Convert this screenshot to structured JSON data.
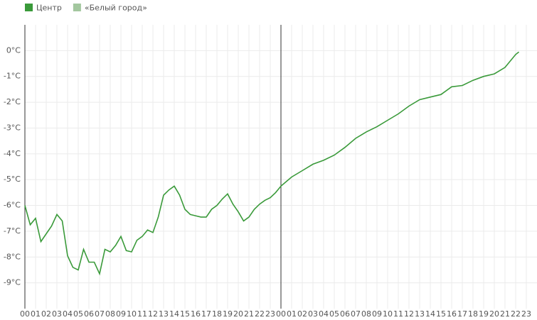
{
  "chart_data": {
    "type": "line",
    "legend": "top-left",
    "grid": true,
    "x": [
      0,
      0.5,
      1,
      1.5,
      2,
      2.5,
      3,
      3.5,
      4,
      4.5,
      5,
      5.5,
      6,
      6.5,
      7,
      7.5,
      8,
      8.5,
      9,
      9.5,
      10,
      10.5,
      11,
      11.5,
      12,
      12.5,
      13,
      13.5,
      14,
      14.5,
      15,
      15.5,
      16,
      16.5,
      17,
      17.5,
      18,
      18.5,
      19,
      19.5,
      20,
      20.5,
      21,
      21.5,
      22,
      22.5,
      23,
      23.5,
      24,
      25,
      26,
      27,
      28,
      29,
      30,
      31,
      32,
      33,
      34,
      35,
      36,
      37,
      38,
      39,
      40,
      41,
      42,
      43,
      44,
      45,
      46,
      46.3
    ],
    "series": [
      {
        "name": "Центр",
        "color": "#3a9a3a",
        "values": [
          -6.0,
          -6.75,
          -6.5,
          -7.4,
          -7.1,
          -6.8,
          -6.35,
          -6.6,
          -7.95,
          -8.4,
          -8.5,
          -7.7,
          -8.2,
          -8.2,
          -8.65,
          -7.7,
          -7.8,
          -7.55,
          -7.2,
          -7.75,
          -7.8,
          -7.35,
          -7.2,
          -6.95,
          -7.05,
          -6.45,
          -5.6,
          -5.4,
          -5.25,
          -5.6,
          -6.15,
          -6.35,
          -6.4,
          -6.45,
          -6.45,
          -6.15,
          -6.0,
          -5.75,
          -5.55,
          -5.95,
          -6.25,
          -6.6,
          -6.45,
          -6.15,
          -5.95,
          -5.8,
          -5.7,
          -5.5,
          -5.25,
          -4.9,
          -4.65,
          -4.4,
          -4.25,
          -4.05,
          -3.75,
          -3.4,
          -3.15,
          -2.95,
          -2.7,
          -2.45,
          -2.15,
          -1.9,
          -1.8,
          -1.7,
          -1.4,
          -1.35,
          -1.15,
          -1.0,
          -0.9,
          -0.65,
          -0.15,
          -0.05
        ]
      },
      {
        "name": "«Белый город»",
        "color": "#a3c79f",
        "values": [
          null,
          null,
          null,
          null,
          null,
          null,
          null,
          null,
          null,
          null,
          null,
          null,
          null,
          null,
          null,
          null,
          null,
          null,
          null,
          null,
          null,
          null,
          null,
          null,
          null,
          null,
          null,
          null,
          null,
          null,
          null,
          null,
          null,
          null,
          null,
          null,
          null,
          null,
          null,
          null,
          null,
          null,
          null,
          null,
          null,
          null,
          null,
          null,
          null,
          null,
          null,
          null,
          null,
          null,
          null,
          null,
          null,
          null,
          null,
          null,
          null,
          null,
          null,
          null,
          null,
          null,
          null,
          null,
          null,
          null,
          null,
          null
        ]
      }
    ],
    "xlim": [
      0,
      48
    ],
    "xticks": [
      {
        "value": 0,
        "label": "00"
      },
      {
        "value": 1,
        "label": "01"
      },
      {
        "value": 2,
        "label": "02"
      },
      {
        "value": 3,
        "label": "03"
      },
      {
        "value": 4,
        "label": "04"
      },
      {
        "value": 5,
        "label": "05"
      },
      {
        "value": 6,
        "label": "06"
      },
      {
        "value": 7,
        "label": "07"
      },
      {
        "value": 8,
        "label": "08"
      },
      {
        "value": 9,
        "label": "09"
      },
      {
        "value": 10,
        "label": "10"
      },
      {
        "value": 11,
        "label": "11"
      },
      {
        "value": 12,
        "label": "12"
      },
      {
        "value": 13,
        "label": "13"
      },
      {
        "value": 14,
        "label": "14"
      },
      {
        "value": 15,
        "label": "15"
      },
      {
        "value": 16,
        "label": "16"
      },
      {
        "value": 17,
        "label": "17"
      },
      {
        "value": 18,
        "label": "18"
      },
      {
        "value": 19,
        "label": "19"
      },
      {
        "value": 20,
        "label": "20"
      },
      {
        "value": 21,
        "label": "21"
      },
      {
        "value": 22,
        "label": "22"
      },
      {
        "value": 23,
        "label": "23"
      },
      {
        "value": 24,
        "label": "00"
      },
      {
        "value": 25,
        "label": "01"
      },
      {
        "value": 26,
        "label": "02"
      },
      {
        "value": 27,
        "label": "03"
      },
      {
        "value": 28,
        "label": "04"
      },
      {
        "value": 29,
        "label": "05"
      },
      {
        "value": 30,
        "label": "06"
      },
      {
        "value": 31,
        "label": "07"
      },
      {
        "value": 32,
        "label": "08"
      },
      {
        "value": 33,
        "label": "09"
      },
      {
        "value": 34,
        "label": "10"
      },
      {
        "value": 35,
        "label": "11"
      },
      {
        "value": 36,
        "label": "12"
      },
      {
        "value": 37,
        "label": "13"
      },
      {
        "value": 38,
        "label": "14"
      },
      {
        "value": 39,
        "label": "15"
      },
      {
        "value": 40,
        "label": "16"
      },
      {
        "value": 41,
        "label": "17"
      },
      {
        "value": 42,
        "label": "18"
      },
      {
        "value": 43,
        "label": "19"
      },
      {
        "value": 44,
        "label": "20"
      },
      {
        "value": 45,
        "label": "21"
      },
      {
        "value": 46,
        "label": "22"
      },
      {
        "value": 47,
        "label": "23"
      }
    ],
    "ylim": [
      -10,
      1
    ],
    "yticks": [
      {
        "value": 0,
        "label": "0°C"
      },
      {
        "value": -1,
        "label": "-1°C"
      },
      {
        "value": -2,
        "label": "-2°C"
      },
      {
        "value": -3,
        "label": "-3°C"
      },
      {
        "value": -4,
        "label": "-4°C"
      },
      {
        "value": -5,
        "label": "-5°C"
      },
      {
        "value": -6,
        "label": "-6°C"
      },
      {
        "value": -7,
        "label": "-7°C"
      },
      {
        "value": -8,
        "label": "-8°C"
      },
      {
        "value": -9,
        "label": "-9°C"
      }
    ]
  }
}
